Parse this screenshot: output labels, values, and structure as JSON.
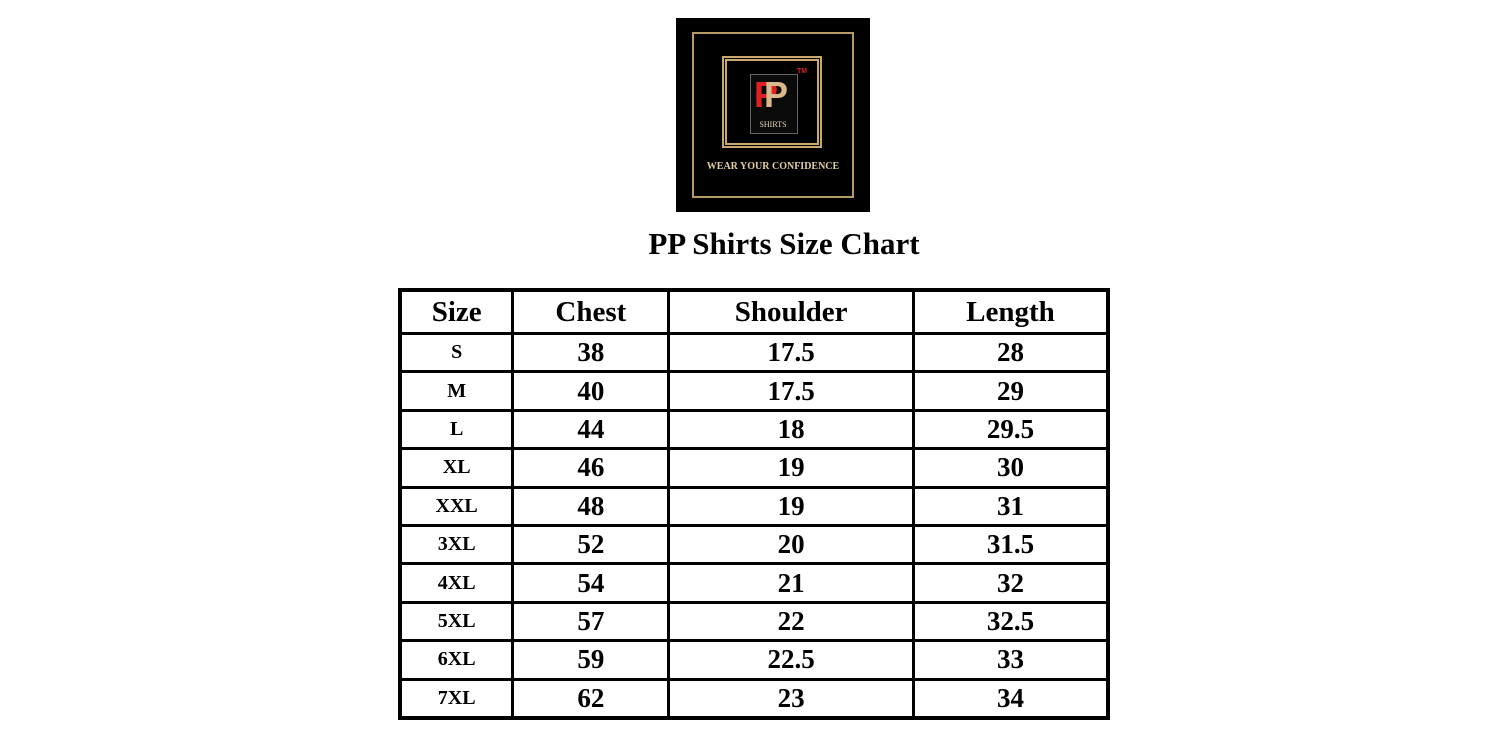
{
  "logo": {
    "brand": "PP",
    "sub": "SHIRTS",
    "tm": "TM",
    "tagline": "WEAR YOUR CONFIDENCE"
  },
  "title": "PP Shirts Size Chart",
  "table": {
    "headers": [
      "Size",
      "Chest",
      "Shoulder",
      "Length"
    ],
    "rows": [
      [
        "S",
        "38",
        "17.5",
        "28"
      ],
      [
        "M",
        "40",
        "17.5",
        "29"
      ],
      [
        "L",
        "44",
        "18",
        "29.5"
      ],
      [
        "XL",
        "46",
        "19",
        "30"
      ],
      [
        "XXL",
        "48",
        "19",
        "31"
      ],
      [
        "3XL",
        "52",
        "20",
        "31.5"
      ],
      [
        "4XL",
        "54",
        "21",
        "32"
      ],
      [
        "5XL",
        "57",
        "22",
        "32.5"
      ],
      [
        "6XL",
        "59",
        "22.5",
        "33"
      ],
      [
        "7XL",
        "62",
        "23",
        "34"
      ]
    ]
  }
}
